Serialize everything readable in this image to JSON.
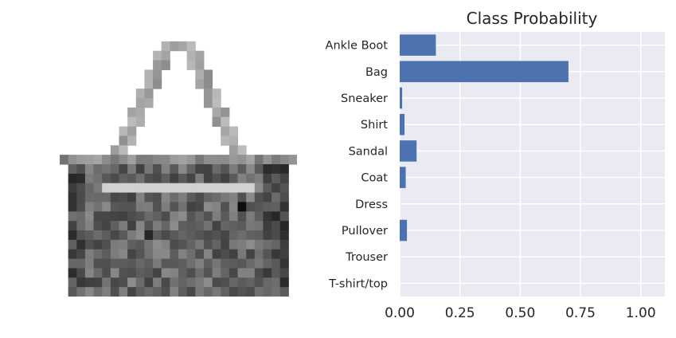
{
  "image": {
    "description_name": "fashion-mnist-bag-image",
    "grid_rows": 28,
    "grid_cols": 28
  },
  "chart_data": {
    "type": "bar",
    "orientation": "horizontal",
    "title": "Class Probability",
    "categories": [
      "Ankle Boot",
      "Bag",
      "Sneaker",
      "Shirt",
      "Sandal",
      "Coat",
      "Dress",
      "Pullover",
      "Trouser",
      "T-shirt/top"
    ],
    "values": [
      0.15,
      0.7,
      0.01,
      0.02,
      0.07,
      0.025,
      0.0,
      0.03,
      0.0,
      0.0
    ],
    "xlim": [
      0,
      1.1
    ],
    "xticks": [
      0.0,
      0.25,
      0.5,
      0.75,
      1.0
    ],
    "xtick_labels": [
      "0.00",
      "0.25",
      "0.50",
      "0.75",
      "1.00"
    ],
    "grid": true,
    "bar_color": "#4c72b0",
    "background_color": "#eaeaf2",
    "grid_color": "#ffffff"
  }
}
